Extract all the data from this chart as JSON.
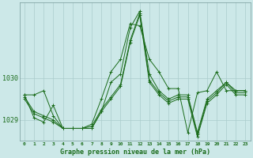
{
  "title": "Graphe pression niveau de la mer (hPa)",
  "bg_color": "#cce8e8",
  "grid_color": "#aacccc",
  "line_color": "#1a6b1a",
  "x_labels": [
    "0",
    "1",
    "2",
    "3",
    "4",
    "5",
    "6",
    "7",
    "8",
    "9",
    "10",
    "11",
    "12",
    "13",
    "14",
    "15",
    "16",
    "17",
    "18",
    "19",
    "20",
    "21",
    "22",
    "23"
  ],
  "yticks": [
    1029,
    1030
  ],
  "ylim": [
    1028.5,
    1031.8
  ],
  "figsize": [
    3.2,
    2.0
  ],
  "dpi": 100,
  "series": [
    [
      1029.6,
      1029.6,
      1029.7,
      1029.1,
      1028.8,
      1028.8,
      1028.8,
      1028.8,
      1029.2,
      1029.9,
      1030.1,
      1031.2,
      1031.6,
      1030.1,
      1029.7,
      1029.5,
      1029.6,
      1029.6,
      1028.7,
      1029.5,
      1029.7,
      1029.9,
      1029.7,
      1029.7
    ],
    [
      1029.55,
      1029.2,
      1029.1,
      1029.0,
      1028.8,
      1028.8,
      1028.8,
      1028.85,
      1029.25,
      1029.55,
      1029.85,
      1030.9,
      1031.55,
      1029.95,
      1029.65,
      1029.45,
      1029.55,
      1029.55,
      1028.65,
      1029.45,
      1029.65,
      1029.9,
      1029.65,
      1029.65
    ],
    [
      1029.5,
      1029.15,
      1029.05,
      1028.95,
      1028.8,
      1028.8,
      1028.8,
      1028.8,
      1029.2,
      1029.5,
      1029.8,
      1030.85,
      1031.5,
      1029.9,
      1029.6,
      1029.4,
      1029.5,
      1029.5,
      1028.6,
      1029.4,
      1029.6,
      1029.85,
      1029.6,
      1029.6
    ],
    [
      1029.6,
      1029.05,
      1028.95,
      1029.35,
      1028.8,
      1028.8,
      1028.8,
      1028.9,
      1029.5,
      1030.15,
      1030.45,
      1031.3,
      1031.25,
      1030.45,
      1030.15,
      1029.75,
      1029.75,
      1028.7,
      1029.65,
      1029.7,
      1030.15,
      1029.7,
      1029.7,
      1029.7
    ]
  ]
}
